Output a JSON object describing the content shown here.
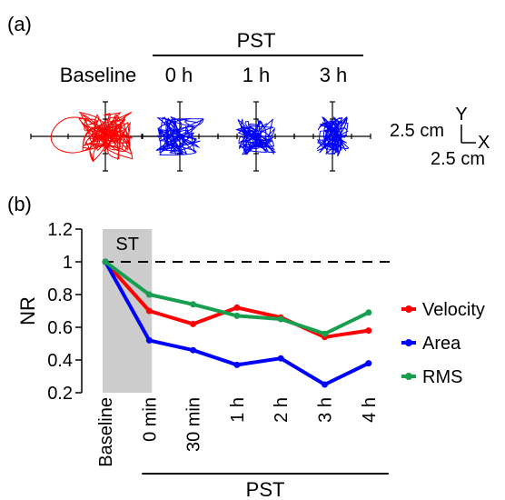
{
  "panel_a": {
    "label": "(a)",
    "group_label": "PST",
    "conditions": [
      {
        "label": "Baseline",
        "color": "#ff0000"
      },
      {
        "label": "0 h",
        "color": "#0000ff"
      },
      {
        "label": "1 h",
        "color": "#0000ff"
      },
      {
        "label": "3 h",
        "color": "#0000ff"
      }
    ],
    "scale_bar": {
      "axis_y": "Y",
      "axis_x": "X",
      "y_length": "2.5 cm",
      "x_length": "2.5 cm"
    }
  },
  "panel_b": {
    "label": "(b)"
  },
  "chart_data": {
    "type": "line",
    "ylabel": "NR",
    "xlabel": "",
    "ylim": [
      0.2,
      1.2
    ],
    "yticks": [
      "0.2",
      "0.4",
      "0.6",
      "0.8",
      "1",
      "1.2"
    ],
    "categories": [
      "Baseline",
      "0 min",
      "30 min",
      "1 h",
      "2 h",
      "3 h",
      "4 h"
    ],
    "reference_line": {
      "y": 1.0,
      "style": "dashed"
    },
    "shaded_region": {
      "label": "ST",
      "from_category": "Baseline",
      "to_category": "0 min"
    },
    "bracket_label": "PST",
    "bracket_from_category": "0 min",
    "legend_position": "right",
    "series": [
      {
        "name": "Velocity",
        "color": "#ff0000",
        "values": [
          1.0,
          0.7,
          0.62,
          0.72,
          0.66,
          0.54,
          0.58
        ]
      },
      {
        "name": "Area",
        "color": "#0000ff",
        "values": [
          1.0,
          0.52,
          0.46,
          0.37,
          0.41,
          0.25,
          0.38
        ]
      },
      {
        "name": "RMS",
        "color": "#179e4f",
        "values": [
          1.0,
          0.8,
          0.74,
          0.67,
          0.65,
          0.56,
          0.69
        ]
      }
    ]
  }
}
